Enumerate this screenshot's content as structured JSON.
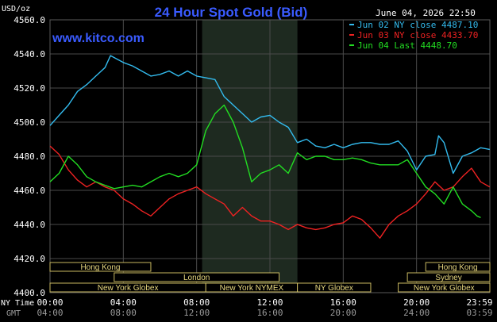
{
  "header": {
    "title": "24 Hour Spot Gold (Bid)",
    "date": "June 04, 2026 22:50",
    "unit": "USD/oz",
    "site": "www.kitco.com"
  },
  "legend": {
    "items": [
      {
        "label": "Jun 02 NY close 4487.10",
        "color": "#33bbee"
      },
      {
        "label": "Jun 03 NY close 4433.70",
        "color": "#ee2222"
      },
      {
        "label": "Jun 04 Last 4448.70",
        "color": "#22dd22"
      }
    ]
  },
  "sessions": {
    "row1": [
      {
        "label": "Hong Kong",
        "from": 0,
        "to": 5.5
      },
      {
        "label": "Hong Kong",
        "from": 20.5,
        "to": 24
      }
    ],
    "row2": [
      {
        "label": "London",
        "from": 3.5,
        "to": 12.5
      },
      {
        "label": "Sydney",
        "from": 19.5,
        "to": 24
      }
    ],
    "row3": [
      {
        "label": "New York Globex",
        "from": 0,
        "to": 8.5
      },
      {
        "label": "New York NYMEX",
        "from": 8.5,
        "to": 13.5
      },
      {
        "label": "NY Globex",
        "from": 13.5,
        "to": 17.5
      },
      {
        "label": "New York Globex",
        "from": 19,
        "to": 24
      }
    ]
  },
  "axes": {
    "ny_time_label": "NY Time",
    "gmt_label": "GMT",
    "ny_ticks": [
      "00:00",
      "04:00",
      "08:00",
      "12:00",
      "16:00",
      "20:00",
      "23:59"
    ],
    "gmt_ticks": [
      "04:00",
      "08:00",
      "12:00",
      "16:00",
      "20:00",
      "24:00",
      "03:59"
    ],
    "y_ticks": [
      "4560.0",
      "4540.0",
      "4520.0",
      "4500.0",
      "4480.0",
      "4460.0",
      "4440.0",
      "4420.0",
      "4400.0"
    ]
  },
  "chart_data": {
    "type": "line",
    "title": "24 Hour Spot Gold (Bid)",
    "ylabel": "USD/oz",
    "ylim": [
      4400,
      4560
    ],
    "xlim": [
      0,
      24
    ],
    "grid": true,
    "shaded_x": [
      8.3,
      13.5
    ],
    "series": [
      {
        "name": "Jun 02 NY close 4487.10",
        "color": "#33bbee",
        "points": [
          [
            0,
            4498
          ],
          [
            0.5,
            4504
          ],
          [
            1,
            4510
          ],
          [
            1.5,
            4518
          ],
          [
            2,
            4522
          ],
          [
            2.5,
            4527
          ],
          [
            3,
            4532
          ],
          [
            3.3,
            4539
          ],
          [
            4,
            4535
          ],
          [
            4.5,
            4533
          ],
          [
            5,
            4530
          ],
          [
            5.5,
            4527
          ],
          [
            6,
            4528
          ],
          [
            6.5,
            4530
          ],
          [
            7,
            4527
          ],
          [
            7.5,
            4530
          ],
          [
            8,
            4527
          ],
          [
            8.5,
            4526
          ],
          [
            9,
            4525
          ],
          [
            9.5,
            4515
          ],
          [
            10,
            4510
          ],
          [
            10.5,
            4505
          ],
          [
            11,
            4500
          ],
          [
            11.5,
            4503
          ],
          [
            12,
            4504
          ],
          [
            12.5,
            4500
          ],
          [
            13,
            4497
          ],
          [
            13.5,
            4488
          ],
          [
            14,
            4490
          ],
          [
            14.5,
            4486
          ],
          [
            15,
            4485
          ],
          [
            15.5,
            4487
          ],
          [
            16,
            4485
          ],
          [
            16.5,
            4487
          ],
          [
            17,
            4488
          ],
          [
            17.5,
            4488
          ],
          [
            18,
            4487
          ],
          [
            18.5,
            4487
          ],
          [
            19,
            4489
          ],
          [
            19.5,
            4483
          ],
          [
            20,
            4472
          ],
          [
            20.5,
            4480
          ],
          [
            21,
            4481
          ],
          [
            21.2,
            4492
          ],
          [
            21.5,
            4488
          ],
          [
            22,
            4470
          ],
          [
            22.5,
            4480
          ],
          [
            23,
            4482
          ],
          [
            23.5,
            4485
          ],
          [
            23.99,
            4484
          ]
        ]
      },
      {
        "name": "Jun 03 NY close 4433.70",
        "color": "#ee2222",
        "points": [
          [
            0,
            4486
          ],
          [
            0.5,
            4481
          ],
          [
            1,
            4472
          ],
          [
            1.5,
            4466
          ],
          [
            2,
            4462
          ],
          [
            2.5,
            4465
          ],
          [
            3,
            4462
          ],
          [
            3.5,
            4460
          ],
          [
            4,
            4455
          ],
          [
            4.5,
            4452
          ],
          [
            5,
            4448
          ],
          [
            5.5,
            4445
          ],
          [
            6,
            4450
          ],
          [
            6.5,
            4455
          ],
          [
            7,
            4458
          ],
          [
            7.5,
            4460
          ],
          [
            8,
            4462
          ],
          [
            8.5,
            4458
          ],
          [
            9,
            4455
          ],
          [
            9.5,
            4452
          ],
          [
            10,
            4445
          ],
          [
            10.5,
            4450
          ],
          [
            11,
            4445
          ],
          [
            11.5,
            4442
          ],
          [
            12,
            4442
          ],
          [
            12.5,
            4440
          ],
          [
            13,
            4437
          ],
          [
            13.5,
            4440
          ],
          [
            14,
            4438
          ],
          [
            14.5,
            4437
          ],
          [
            15,
            4438
          ],
          [
            15.5,
            4440
          ],
          [
            16,
            4441
          ],
          [
            16.5,
            4445
          ],
          [
            17,
            4443
          ],
          [
            17.5,
            4438
          ],
          [
            18,
            4432
          ],
          [
            18.5,
            4440
          ],
          [
            19,
            4445
          ],
          [
            19.5,
            4448
          ],
          [
            20,
            4452
          ],
          [
            20.5,
            4458
          ],
          [
            21,
            4465
          ],
          [
            21.5,
            4460
          ],
          [
            22,
            4462
          ],
          [
            22.5,
            4468
          ],
          [
            23,
            4473
          ],
          [
            23.5,
            4465
          ],
          [
            23.99,
            4462
          ]
        ]
      },
      {
        "name": "Jun 04 Last 4448.70",
        "color": "#22dd22",
        "points": [
          [
            0,
            4465
          ],
          [
            0.5,
            4470
          ],
          [
            1,
            4480
          ],
          [
            1.5,
            4475
          ],
          [
            2,
            4468
          ],
          [
            2.5,
            4465
          ],
          [
            3,
            4463
          ],
          [
            3.5,
            4461
          ],
          [
            4,
            4462
          ],
          [
            4.5,
            4463
          ],
          [
            5,
            4462
          ],
          [
            5.5,
            4465
          ],
          [
            6,
            4468
          ],
          [
            6.5,
            4470
          ],
          [
            7,
            4468
          ],
          [
            7.5,
            4470
          ],
          [
            8,
            4475
          ],
          [
            8.5,
            4495
          ],
          [
            9,
            4505
          ],
          [
            9.5,
            4510
          ],
          [
            10,
            4500
          ],
          [
            10.5,
            4485
          ],
          [
            11,
            4465
          ],
          [
            11.5,
            4470
          ],
          [
            12,
            4472
          ],
          [
            12.5,
            4475
          ],
          [
            13,
            4470
          ],
          [
            13.5,
            4482
          ],
          [
            14,
            4478
          ],
          [
            14.5,
            4480
          ],
          [
            15,
            4480
          ],
          [
            15.5,
            4478
          ],
          [
            16,
            4478
          ],
          [
            16.5,
            4479
          ],
          [
            17,
            4478
          ],
          [
            17.5,
            4476
          ],
          [
            18,
            4475
          ],
          [
            18.5,
            4475
          ],
          [
            19,
            4475
          ],
          [
            19.5,
            4478
          ],
          [
            20,
            4470
          ],
          [
            20.5,
            4462
          ],
          [
            21,
            4458
          ],
          [
            21.5,
            4452
          ],
          [
            22,
            4462
          ],
          [
            22.5,
            4452
          ],
          [
            23,
            4448
          ],
          [
            23.3,
            4445
          ],
          [
            23.5,
            4444
          ]
        ]
      }
    ]
  }
}
